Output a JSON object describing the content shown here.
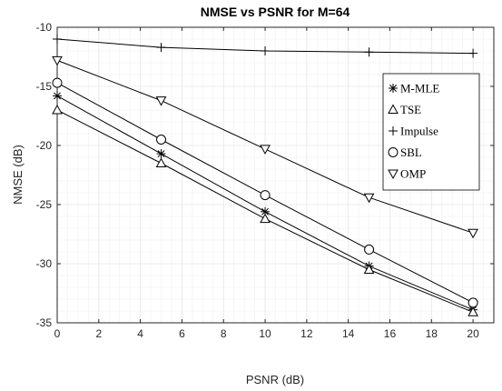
{
  "chart_data": {
    "type": "line",
    "title": "NMSE vs PSNR for M=64",
    "xlabel": "PSNR (dB)",
    "ylabel": "NMSE (dB)",
    "xlim": [
      0,
      21
    ],
    "ylim": [
      -35,
      -10
    ],
    "xticks": [
      0,
      2,
      4,
      6,
      8,
      10,
      12,
      14,
      16,
      18,
      20
    ],
    "yticks": [
      -10,
      -15,
      -20,
      -25,
      -30,
      -35
    ],
    "grid": true,
    "minor_grid": true,
    "legend_position": "upper-right",
    "x": [
      0,
      5,
      10,
      15,
      20
    ],
    "series": [
      {
        "name": "M-MLE",
        "marker": "asterisk",
        "values": [
          -15.8,
          -20.7,
          -25.6,
          -30.2,
          -33.9
        ]
      },
      {
        "name": "TSE",
        "marker": "triangle-up",
        "values": [
          -17.0,
          -21.5,
          -26.2,
          -30.5,
          -34.1
        ]
      },
      {
        "name": "Impulse",
        "marker": "plus",
        "values": [
          -11.0,
          -11.7,
          -12.0,
          -12.1,
          -12.2
        ]
      },
      {
        "name": "SBL",
        "marker": "circle",
        "values": [
          -14.7,
          -19.5,
          -24.2,
          -28.8,
          -33.3
        ]
      },
      {
        "name": "OMP",
        "marker": "triangle-down",
        "values": [
          -12.8,
          -16.2,
          -20.3,
          -24.4,
          -27.4
        ]
      }
    ],
    "colors": {
      "line": "#000000",
      "grid": "#e6e6e6",
      "minor_grid": "#f0f0f0",
      "axis": "#262626"
    }
  }
}
